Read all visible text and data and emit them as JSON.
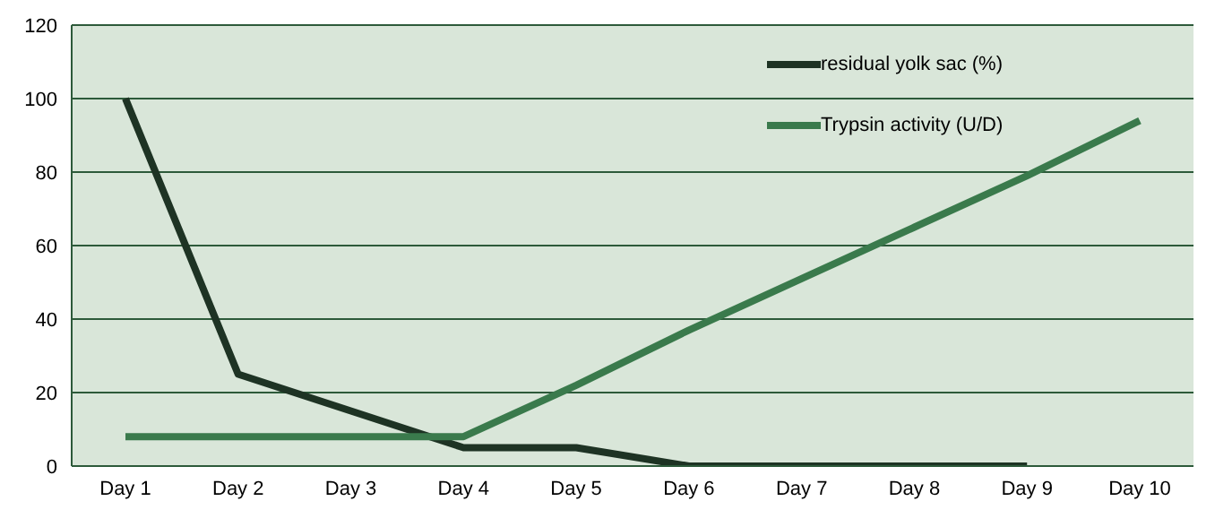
{
  "chart_data": {
    "type": "line",
    "categories": [
      "Day 1",
      "Day 2",
      "Day 3",
      "Day 4",
      "Day 5",
      "Day 6",
      "Day 7",
      "Day 8",
      "Day 9",
      "Day 10"
    ],
    "series": [
      {
        "name": "residual yolk sac (%)",
        "color": "#1e3324",
        "values": [
          100,
          25,
          15,
          5,
          5,
          0,
          0,
          0,
          0,
          null
        ]
      },
      {
        "name": "Trypsin activity (U/D)",
        "color": "#3a7a4c",
        "values": [
          8,
          8,
          8,
          8,
          22,
          37,
          51,
          65,
          79,
          94
        ]
      }
    ],
    "ylim": [
      0,
      120
    ],
    "yticks": [
      0,
      20,
      40,
      60,
      80,
      100,
      120
    ],
    "grid": "y",
    "legend": "top right",
    "marker": "none",
    "line_style": "solid"
  }
}
